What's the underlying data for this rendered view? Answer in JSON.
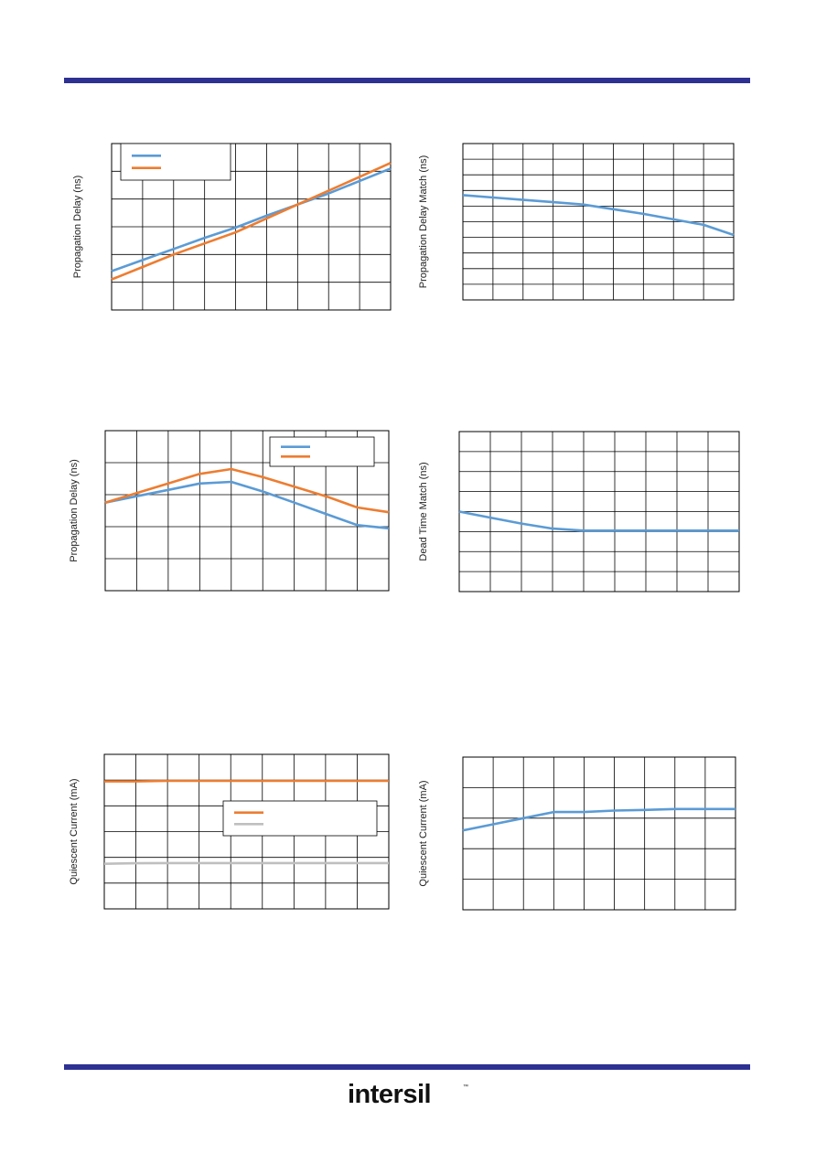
{
  "brand": {
    "logo_text": "intersil",
    "rule_color": "#2e3192"
  },
  "colors": {
    "blue": "#5b9bd5",
    "orange": "#ed7d31",
    "gray": "#bfbfbf",
    "grid": "#000000"
  },
  "chart_data": [
    {
      "id": "c1",
      "type": "line",
      "ylabel": "Propagation Delay (ns)",
      "x": [
        0,
        1,
        2,
        3,
        4,
        5,
        6,
        7,
        8,
        9
      ],
      "xlim": [
        0,
        9
      ],
      "ylim": [
        0,
        6
      ],
      "grid": {
        "cols": 9,
        "rows": 6
      },
      "legend": {
        "position": "top-left",
        "entries": 2
      },
      "series": [
        {
          "color": "blue",
          "values": [
            1.4,
            1.8,
            2.2,
            2.6,
            2.97,
            3.4,
            3.8,
            4.2,
            4.65,
            5.1
          ]
        },
        {
          "color": "orange",
          "values": [
            1.1,
            1.55,
            2.0,
            2.4,
            2.8,
            3.3,
            3.8,
            4.3,
            4.8,
            5.3
          ]
        }
      ]
    },
    {
      "id": "c2",
      "type": "line",
      "ylabel": "Propagation Delay Match (ns)",
      "x": [
        0,
        1,
        2,
        3,
        4,
        5,
        6,
        7,
        8,
        9
      ],
      "xlim": [
        0,
        9
      ],
      "ylim": [
        0,
        10
      ],
      "grid": {
        "cols": 9,
        "rows": 10
      },
      "series": [
        {
          "color": "blue",
          "values": [
            6.7,
            6.55,
            6.4,
            6.25,
            6.1,
            5.8,
            5.5,
            5.15,
            4.8,
            4.15
          ]
        }
      ]
    },
    {
      "id": "c3",
      "type": "line",
      "ylabel": "Propagation Delay (ns)",
      "x": [
        0,
        1,
        2,
        3,
        4,
        5,
        6,
        7,
        8,
        9
      ],
      "xlim": [
        0,
        9
      ],
      "ylim": [
        0,
        5
      ],
      "grid": {
        "cols": 9,
        "rows": 5
      },
      "legend": {
        "position": "top-right",
        "entries": 2
      },
      "series": [
        {
          "color": "blue",
          "values": [
            2.75,
            2.95,
            3.15,
            3.35,
            3.4,
            3.1,
            2.75,
            2.4,
            2.05,
            1.95
          ]
        },
        {
          "color": "orange",
          "values": [
            2.75,
            3.05,
            3.35,
            3.65,
            3.8,
            3.55,
            3.25,
            2.95,
            2.6,
            2.45
          ]
        }
      ]
    },
    {
      "id": "c4",
      "type": "line",
      "ylabel": "Dead Time Match (ns)",
      "x": [
        0,
        1,
        2,
        3,
        4,
        5,
        6,
        7,
        8,
        9
      ],
      "xlim": [
        0,
        9
      ],
      "ylim": [
        0,
        8
      ],
      "grid": {
        "cols": 9,
        "rows": 8
      },
      "series": [
        {
          "color": "blue",
          "values": [
            4.0,
            3.7,
            3.4,
            3.15,
            3.05,
            3.05,
            3.05,
            3.05,
            3.05,
            3.05
          ]
        }
      ]
    },
    {
      "id": "c5",
      "type": "line",
      "ylabel": "Quiescent Current (mA)",
      "x": [
        0,
        1,
        2,
        3,
        4,
        5,
        6,
        7,
        8,
        9
      ],
      "xlim": [
        0,
        9
      ],
      "ylim": [
        0,
        6
      ],
      "grid": {
        "cols": 9,
        "rows": 6
      },
      "legend": {
        "position": "right",
        "entries": 2
      },
      "series": [
        {
          "color": "orange",
          "values": [
            4.95,
            4.95,
            4.97,
            4.97,
            4.97,
            4.97,
            4.97,
            4.97,
            4.97,
            4.97
          ]
        },
        {
          "color": "gray",
          "values": [
            1.75,
            1.77,
            1.78,
            1.78,
            1.78,
            1.78,
            1.78,
            1.78,
            1.78,
            1.78
          ]
        }
      ]
    },
    {
      "id": "c6",
      "type": "line",
      "ylabel": "Quiescent Current (mA)",
      "x": [
        0,
        1,
        2,
        3,
        4,
        5,
        6,
        7,
        8,
        9
      ],
      "xlim": [
        0,
        9
      ],
      "ylim": [
        0,
        5
      ],
      "grid": {
        "cols": 9,
        "rows": 5
      },
      "series": [
        {
          "color": "blue",
          "values": [
            2.6,
            2.8,
            3.0,
            3.2,
            3.2,
            3.25,
            3.27,
            3.3,
            3.3,
            3.3
          ]
        }
      ]
    }
  ]
}
